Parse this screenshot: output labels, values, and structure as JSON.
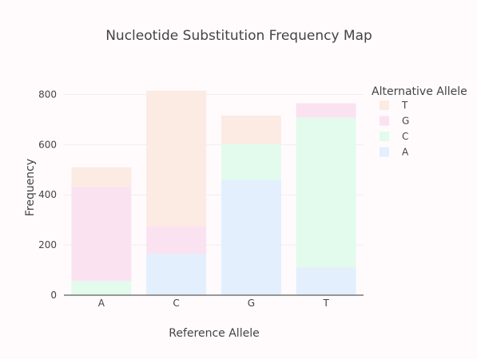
{
  "chart_data": {
    "type": "bar",
    "stacked": true,
    "title": "Nucleotide Substitution Frequency Map",
    "xlabel": "Reference Allele",
    "ylabel": "Frequency",
    "categories": [
      "A",
      "C",
      "G",
      "T"
    ],
    "ylim": [
      0,
      900
    ],
    "yticks": [
      0,
      200,
      400,
      600,
      800
    ],
    "grid": true,
    "legend": {
      "title": "Alternative Allele",
      "placement": "right",
      "order": [
        "T",
        "G",
        "C",
        "A"
      ]
    },
    "series": [
      {
        "name": "A",
        "color": "#e3effc",
        "values": [
          0,
          165,
          460,
          110
        ]
      },
      {
        "name": "C",
        "color": "#e2fbed",
        "values": [
          57,
          0,
          143,
          598
        ]
      },
      {
        "name": "G",
        "color": "#fbe2f1",
        "values": [
          375,
          110,
          0,
          57
        ]
      },
      {
        "name": "T",
        "color": "#fcebe3",
        "values": [
          78,
          540,
          113,
          0
        ]
      }
    ]
  }
}
